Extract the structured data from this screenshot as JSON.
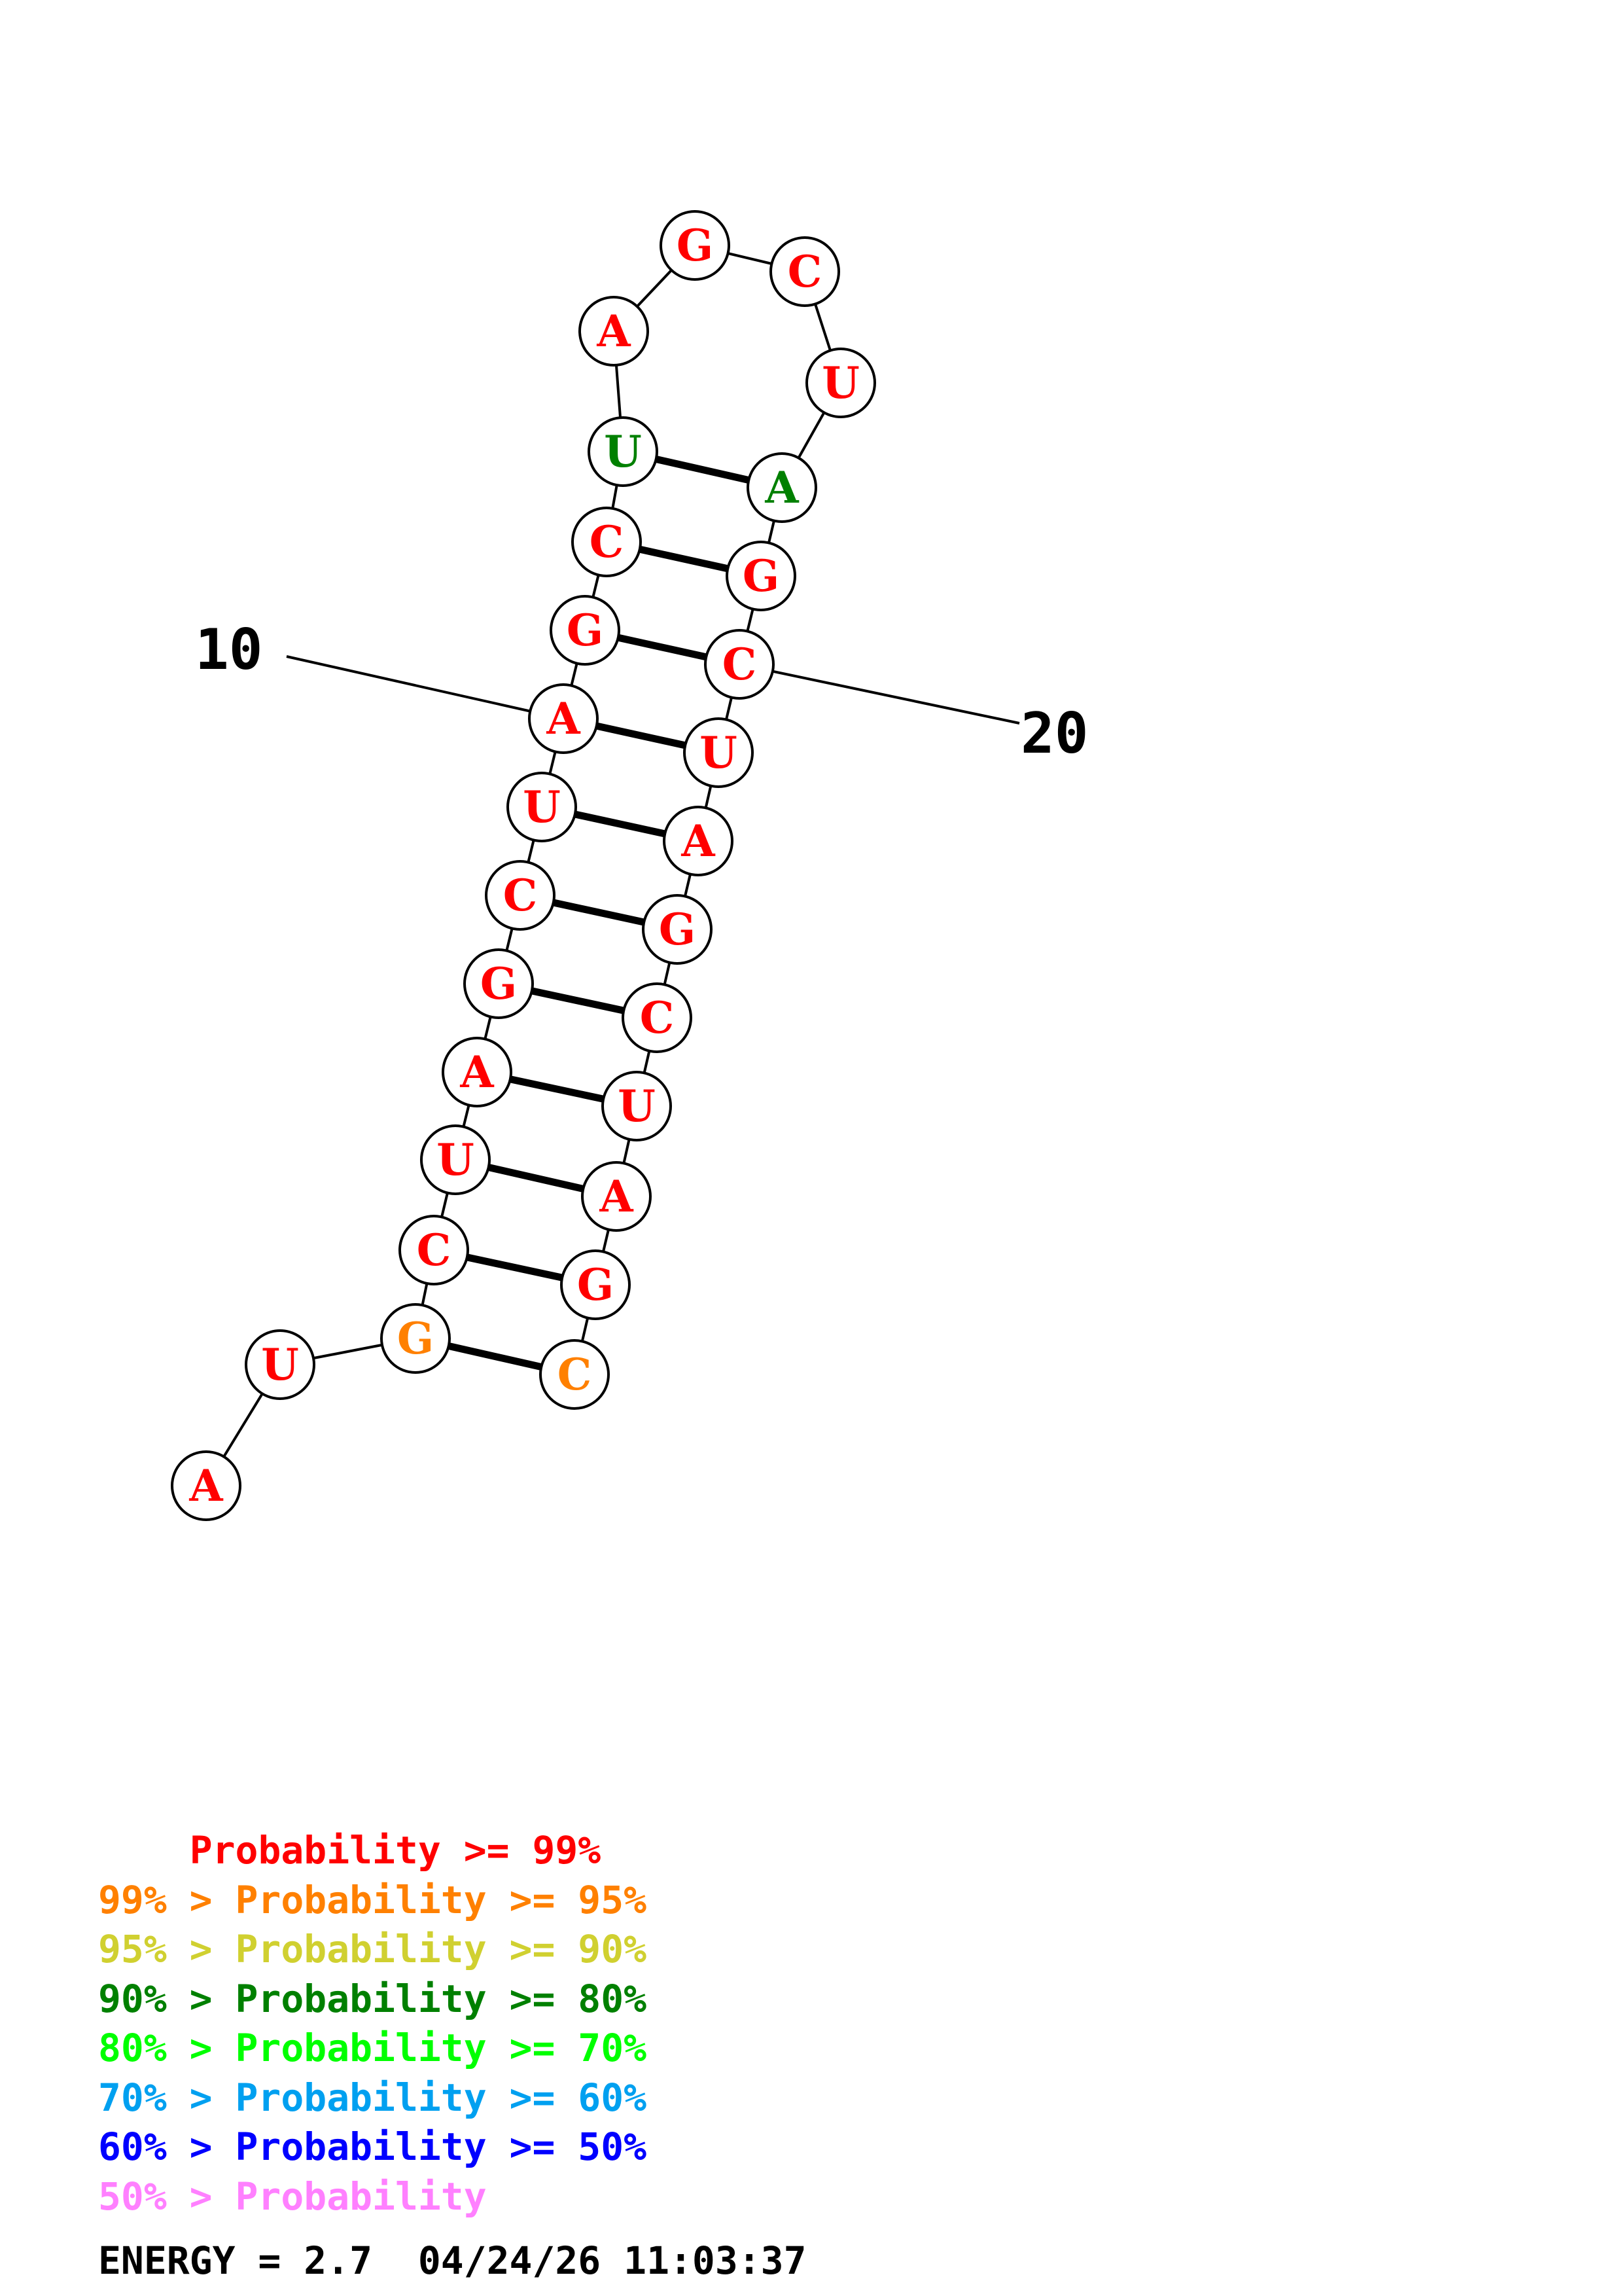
{
  "structure": {
    "nucleotides": [
      {
        "n": 1,
        "base": "A",
        "color": "#ff0000"
      },
      {
        "n": 2,
        "base": "U",
        "color": "#ff0000"
      },
      {
        "n": 3,
        "base": "G",
        "color": "#ff8000"
      },
      {
        "n": 4,
        "base": "C",
        "color": "#ff0000"
      },
      {
        "n": 5,
        "base": "U",
        "color": "#ff0000"
      },
      {
        "n": 6,
        "base": "A",
        "color": "#ff0000"
      },
      {
        "n": 7,
        "base": "G",
        "color": "#ff0000"
      },
      {
        "n": 8,
        "base": "C",
        "color": "#ff0000"
      },
      {
        "n": 9,
        "base": "U",
        "color": "#ff0000"
      },
      {
        "n": 10,
        "base": "A",
        "color": "#ff0000"
      },
      {
        "n": 11,
        "base": "G",
        "color": "#ff0000"
      },
      {
        "n": 12,
        "base": "C",
        "color": "#ff0000"
      },
      {
        "n": 13,
        "base": "U",
        "color": "#008000"
      },
      {
        "n": 14,
        "base": "A",
        "color": "#ff0000"
      },
      {
        "n": 15,
        "base": "G",
        "color": "#ff0000"
      },
      {
        "n": 16,
        "base": "C",
        "color": "#ff0000"
      },
      {
        "n": 17,
        "base": "U",
        "color": "#ff0000"
      },
      {
        "n": 18,
        "base": "A",
        "color": "#008000"
      },
      {
        "n": 19,
        "base": "G",
        "color": "#ff0000"
      },
      {
        "n": 20,
        "base": "C",
        "color": "#ff0000"
      },
      {
        "n": 21,
        "base": "U",
        "color": "#ff0000"
      },
      {
        "n": 22,
        "base": "A",
        "color": "#ff0000"
      },
      {
        "n": 23,
        "base": "G",
        "color": "#ff0000"
      },
      {
        "n": 24,
        "base": "C",
        "color": "#ff0000"
      },
      {
        "n": 25,
        "base": "U",
        "color": "#ff0000"
      },
      {
        "n": 26,
        "base": "A",
        "color": "#ff0000"
      },
      {
        "n": 27,
        "base": "G",
        "color": "#ff0000"
      },
      {
        "n": 28,
        "base": "C",
        "color": "#ff8000"
      }
    ],
    "pairs": [
      [
        3,
        28
      ],
      [
        4,
        27
      ],
      [
        5,
        26
      ],
      [
        6,
        25
      ],
      [
        7,
        24
      ],
      [
        8,
        23
      ],
      [
        9,
        22
      ],
      [
        10,
        21
      ],
      [
        11,
        20
      ],
      [
        12,
        19
      ],
      [
        13,
        18
      ]
    ],
    "position_labels": [
      {
        "n": 10,
        "text": "10"
      },
      {
        "n": 20,
        "text": "20"
      }
    ]
  },
  "legend": [
    {
      "prefix": "    ",
      "text": "Probability >= 99%",
      "color": "#ff0000"
    },
    {
      "prefix": "99% > ",
      "text": "Probability >= 95%",
      "color": "#ff8000"
    },
    {
      "prefix": "95% > ",
      "text": "Probability >= 90%",
      "color": "#d0d030"
    },
    {
      "prefix": "90% > ",
      "text": "Probability >= 80%",
      "color": "#008000"
    },
    {
      "prefix": "80% > ",
      "text": "Probability >= 70%",
      "color": "#00ff00"
    },
    {
      "prefix": "70% > ",
      "text": "Probability >= 60%",
      "color": "#00a0f0"
    },
    {
      "prefix": "60% > ",
      "text": "Probability >= 50%",
      "color": "#0000ff"
    },
    {
      "prefix": "50% > ",
      "text": "Probability",
      "color": "#ff80ff"
    }
  ],
  "footer": {
    "energy_text": "ENERGY = 2.7",
    "timestamp": "04/24/26 11:03:37"
  }
}
